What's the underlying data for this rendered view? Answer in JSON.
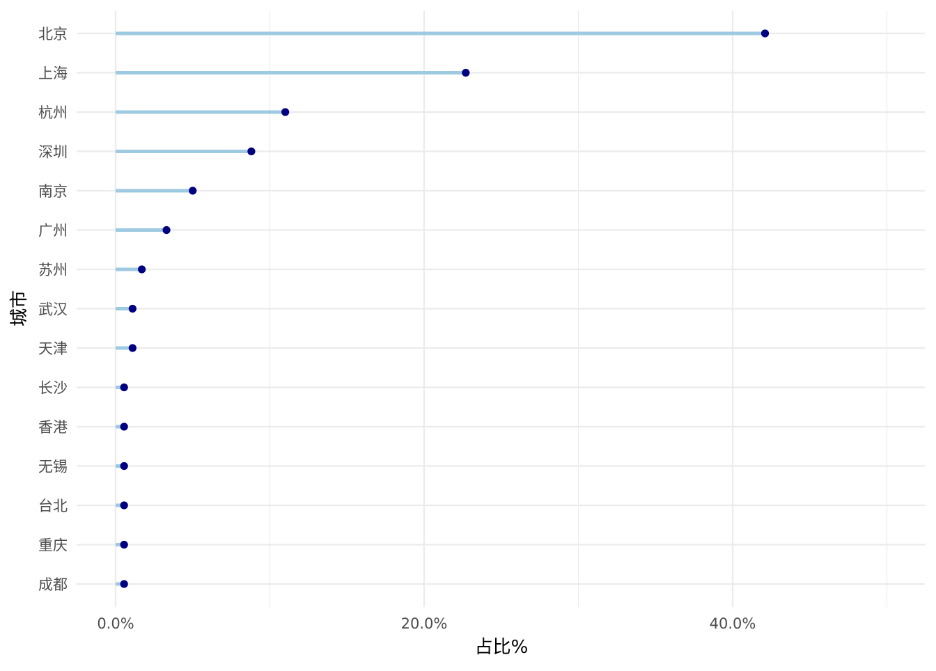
{
  "chart_data": {
    "type": "lollipop",
    "xlabel": "占比%",
    "ylabel": "城市",
    "x_axis": {
      "ticks": [
        0,
        20,
        40
      ],
      "tick_labels": [
        "0.0%",
        "20.0%",
        "40.0%"
      ],
      "minor_ticks": [
        10,
        30,
        50
      ],
      "range": [
        -2.4,
        52.6
      ]
    },
    "grid": true,
    "categories": [
      "北京",
      "上海",
      "杭州",
      "深圳",
      "南京",
      "广州",
      "苏州",
      "武汉",
      "天津",
      "长沙",
      "香港",
      "无锡",
      "台北",
      "重庆",
      "成都"
    ],
    "values": [
      42.1,
      22.7,
      11.0,
      8.8,
      5.0,
      3.3,
      1.7,
      1.1,
      1.1,
      0.55,
      0.55,
      0.55,
      0.55,
      0.55,
      0.55
    ],
    "colors": {
      "stem": "#9ecae1",
      "point": "#000080",
      "grid": "#ebebeb"
    }
  }
}
